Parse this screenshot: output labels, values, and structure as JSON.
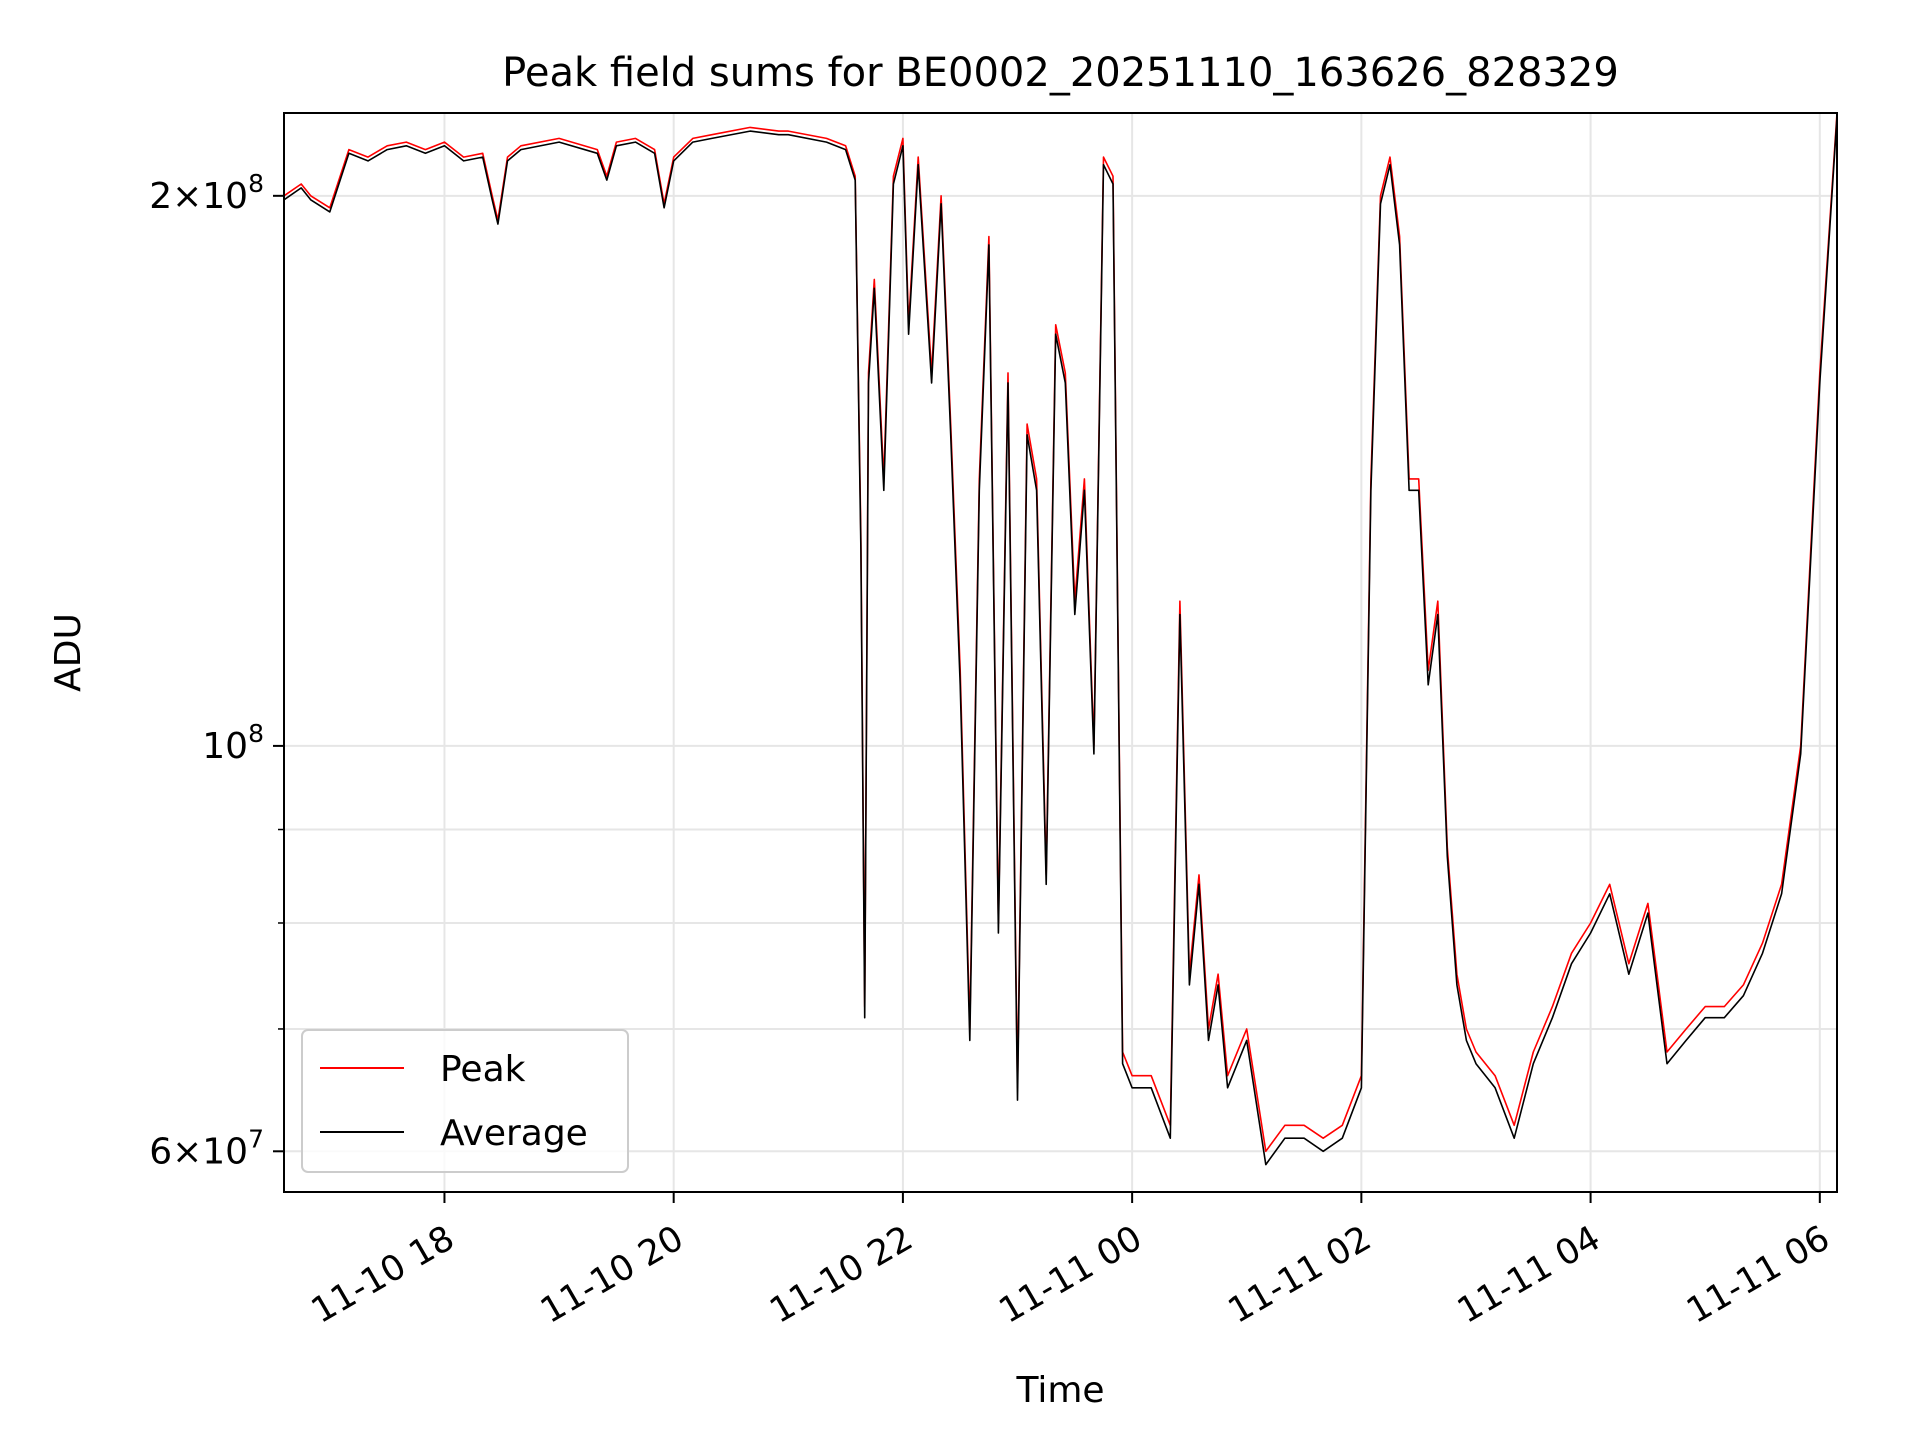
{
  "colors": {
    "peak": "#ff0000",
    "average": "#000000",
    "grid": "#e6e6e6",
    "frame": "#000000"
  },
  "chart_data": {
    "type": "line",
    "title": "Peak field sums for BE0002_20251110_163626_828329",
    "xlabel": "Time",
    "ylabel": "ADU",
    "yscale": "log",
    "grid": true,
    "legend_position": "lower-left",
    "xlim": [
      "2025-11-10 16:36",
      "2025-11-11 06:09"
    ],
    "ylim": [
      57000000,
      222000000
    ],
    "x_ticks": [
      "2025-11-10 18:00",
      "2025-11-10 20:00",
      "2025-11-10 22:00",
      "2025-11-11 00:00",
      "2025-11-11 02:00",
      "2025-11-11 04:00",
      "2025-11-11 06:00"
    ],
    "x_tick_labels": [
      "11-10 18",
      "11-10 20",
      "11-10 22",
      "11-11 00",
      "11-11 02",
      "11-11 04",
      "11-11 06"
    ],
    "y_ticks": [
      {
        "value": 60000000,
        "mantissa": "6",
        "exponent": "7"
      },
      {
        "value": 100000000,
        "mantissa": "",
        "exponent": "8"
      },
      {
        "value": 200000000,
        "mantissa": "2",
        "exponent": "8"
      }
    ],
    "y_minor_ticks": [
      70000000,
      80000000,
      90000000
    ],
    "series": [
      {
        "name": "Peak",
        "color": "#ff0000",
        "x": [
          "2025-11-10 16:36",
          "2025-11-10 16:45",
          "2025-11-10 16:50",
          "2025-11-10 17:00",
          "2025-11-10 17:10",
          "2025-11-10 17:20",
          "2025-11-10 17:30",
          "2025-11-10 17:40",
          "2025-11-10 17:50",
          "2025-11-10 18:00",
          "2025-11-10 18:10",
          "2025-11-10 18:20",
          "2025-11-10 18:25",
          "2025-11-10 18:28",
          "2025-11-10 18:33",
          "2025-11-10 18:40",
          "2025-11-10 19:00",
          "2025-11-10 19:20",
          "2025-11-10 19:25",
          "2025-11-10 19:30",
          "2025-11-10 19:40",
          "2025-11-10 19:50",
          "2025-11-10 19:55",
          "2025-11-10 20:00",
          "2025-11-10 20:10",
          "2025-11-10 20:20",
          "2025-11-10 20:40",
          "2025-11-10 20:55",
          "2025-11-10 21:00",
          "2025-11-10 21:20",
          "2025-11-10 21:30",
          "2025-11-10 21:35",
          "2025-11-10 21:38",
          "2025-11-10 21:40",
          "2025-11-10 21:42",
          "2025-11-10 21:45",
          "2025-11-10 21:50",
          "2025-11-10 21:55",
          "2025-11-10 22:00",
          "2025-11-10 22:03",
          "2025-11-10 22:08",
          "2025-11-10 22:12",
          "2025-11-10 22:15",
          "2025-11-10 22:20",
          "2025-11-10 22:25",
          "2025-11-10 22:30",
          "2025-11-10 22:35",
          "2025-11-10 22:40",
          "2025-11-10 22:45",
          "2025-11-10 22:50",
          "2025-11-10 22:55",
          "2025-11-10 23:00",
          "2025-11-10 23:05",
          "2025-11-10 23:10",
          "2025-11-10 23:15",
          "2025-11-10 23:20",
          "2025-11-10 23:25",
          "2025-11-10 23:30",
          "2025-11-10 23:35",
          "2025-11-10 23:40",
          "2025-11-10 23:45",
          "2025-11-10 23:50",
          "2025-11-10 23:55",
          "2025-11-11 00:00",
          "2025-11-11 00:10",
          "2025-11-11 00:20",
          "2025-11-11 00:25",
          "2025-11-11 00:30",
          "2025-11-11 00:35",
          "2025-11-11 00:40",
          "2025-11-11 00:45",
          "2025-11-11 00:50",
          "2025-11-11 01:00",
          "2025-11-11 01:10",
          "2025-11-11 01:20",
          "2025-11-11 01:30",
          "2025-11-11 01:40",
          "2025-11-11 01:50",
          "2025-11-11 02:00",
          "2025-11-11 02:05",
          "2025-11-11 02:10",
          "2025-11-11 02:15",
          "2025-11-11 02:20",
          "2025-11-11 02:25",
          "2025-11-11 02:30",
          "2025-11-11 02:35",
          "2025-11-11 02:40",
          "2025-11-11 02:45",
          "2025-11-11 02:50",
          "2025-11-11 02:55",
          "2025-11-11 03:00",
          "2025-11-11 03:10",
          "2025-11-11 03:20",
          "2025-11-11 03:30",
          "2025-11-11 03:40",
          "2025-11-11 03:50",
          "2025-11-11 04:00",
          "2025-11-11 04:10",
          "2025-11-11 04:20",
          "2025-11-11 04:30",
          "2025-11-11 04:40",
          "2025-11-11 04:50",
          "2025-11-11 05:00",
          "2025-11-11 05:10",
          "2025-11-11 05:20",
          "2025-11-11 05:30",
          "2025-11-11 05:40",
          "2025-11-11 05:50",
          "2025-11-11 06:00",
          "2025-11-11 06:09"
        ],
        "values": [
          200000000,
          203000000,
          200000000,
          197000000,
          212000000,
          210000000,
          213000000,
          214000000,
          212000000,
          214000000,
          210000000,
          211000000,
          200000000,
          194000000,
          210000000,
          213000000,
          215000000,
          212000000,
          205000000,
          214000000,
          215000000,
          212000000,
          198000000,
          210000000,
          215000000,
          216000000,
          218000000,
          217000000,
          217000000,
          215000000,
          213000000,
          205000000,
          130000000,
          72000000,
          160000000,
          180000000,
          140000000,
          205000000,
          215000000,
          170000000,
          210000000,
          180000000,
          160000000,
          200000000,
          150000000,
          110000000,
          70000000,
          140000000,
          190000000,
          80000000,
          160000000,
          65000000,
          150000000,
          140000000,
          85000000,
          170000000,
          160000000,
          120000000,
          140000000,
          100000000,
          210000000,
          205000000,
          68000000,
          66000000,
          66000000,
          62000000,
          120000000,
          75000000,
          85000000,
          70000000,
          75000000,
          66000000,
          70000000,
          60000000,
          62000000,
          62000000,
          61000000,
          62000000,
          66000000,
          140000000,
          200000000,
          210000000,
          190000000,
          140000000,
          140000000,
          110000000,
          120000000,
          88000000,
          75000000,
          70000000,
          68000000,
          66000000,
          62000000,
          68000000,
          72000000,
          77000000,
          80000000,
          84000000,
          76000000,
          82000000,
          68000000,
          70000000,
          72000000,
          72000000,
          74000000,
          78000000,
          84000000,
          100000000,
          160000000,
          222000000
        ]
      },
      {
        "name": "Average",
        "color": "#000000",
        "x": [
          "2025-11-10 16:36",
          "2025-11-10 16:45",
          "2025-11-10 16:50",
          "2025-11-10 17:00",
          "2025-11-10 17:10",
          "2025-11-10 17:20",
          "2025-11-10 17:30",
          "2025-11-10 17:40",
          "2025-11-10 17:50",
          "2025-11-10 18:00",
          "2025-11-10 18:10",
          "2025-11-10 18:20",
          "2025-11-10 18:25",
          "2025-11-10 18:28",
          "2025-11-10 18:33",
          "2025-11-10 18:40",
          "2025-11-10 19:00",
          "2025-11-10 19:20",
          "2025-11-10 19:25",
          "2025-11-10 19:30",
          "2025-11-10 19:40",
          "2025-11-10 19:50",
          "2025-11-10 19:55",
          "2025-11-10 20:00",
          "2025-11-10 20:10",
          "2025-11-10 20:20",
          "2025-11-10 20:40",
          "2025-11-10 20:55",
          "2025-11-10 21:00",
          "2025-11-10 21:20",
          "2025-11-10 21:30",
          "2025-11-10 21:35",
          "2025-11-10 21:38",
          "2025-11-10 21:40",
          "2025-11-10 21:42",
          "2025-11-10 21:45",
          "2025-11-10 21:50",
          "2025-11-10 21:55",
          "2025-11-10 22:00",
          "2025-11-10 22:03",
          "2025-11-10 22:08",
          "2025-11-10 22:12",
          "2025-11-10 22:15",
          "2025-11-10 22:20",
          "2025-11-10 22:25",
          "2025-11-10 22:30",
          "2025-11-10 22:35",
          "2025-11-10 22:40",
          "2025-11-10 22:45",
          "2025-11-10 22:50",
          "2025-11-10 22:55",
          "2025-11-10 23:00",
          "2025-11-10 23:05",
          "2025-11-10 23:10",
          "2025-11-10 23:15",
          "2025-11-10 23:20",
          "2025-11-10 23:25",
          "2025-11-10 23:30",
          "2025-11-10 23:35",
          "2025-11-10 23:40",
          "2025-11-10 23:45",
          "2025-11-10 23:50",
          "2025-11-10 23:55",
          "2025-11-11 00:00",
          "2025-11-11 00:10",
          "2025-11-11 00:20",
          "2025-11-11 00:25",
          "2025-11-11 00:30",
          "2025-11-11 00:35",
          "2025-11-11 00:40",
          "2025-11-11 00:45",
          "2025-11-11 00:50",
          "2025-11-11 01:00",
          "2025-11-11 01:10",
          "2025-11-11 01:20",
          "2025-11-11 01:30",
          "2025-11-11 01:40",
          "2025-11-11 01:50",
          "2025-11-11 02:00",
          "2025-11-11 02:05",
          "2025-11-11 02:10",
          "2025-11-11 02:15",
          "2025-11-11 02:20",
          "2025-11-11 02:25",
          "2025-11-11 02:30",
          "2025-11-11 02:35",
          "2025-11-11 02:40",
          "2025-11-11 02:45",
          "2025-11-11 02:50",
          "2025-11-11 02:55",
          "2025-11-11 03:00",
          "2025-11-11 03:10",
          "2025-11-11 03:20",
          "2025-11-11 03:30",
          "2025-11-11 03:40",
          "2025-11-11 03:50",
          "2025-11-11 04:00",
          "2025-11-11 04:10",
          "2025-11-11 04:20",
          "2025-11-11 04:30",
          "2025-11-11 04:40",
          "2025-11-11 04:50",
          "2025-11-11 05:00",
          "2025-11-11 05:10",
          "2025-11-11 05:20",
          "2025-11-11 05:30",
          "2025-11-11 05:40",
          "2025-11-11 05:50",
          "2025-11-11 06:00",
          "2025-11-11 06:09"
        ],
        "values": [
          199000000,
          202000000,
          199000000,
          196000000,
          211000000,
          209000000,
          212000000,
          213000000,
          211000000,
          213000000,
          209000000,
          210000000,
          199000000,
          193000000,
          209000000,
          212000000,
          214000000,
          211000000,
          204000000,
          213000000,
          214000000,
          211000000,
          197000000,
          209000000,
          214000000,
          215000000,
          217000000,
          216000000,
          216000000,
          214000000,
          212000000,
          204000000,
          128000000,
          71000000,
          158000000,
          178000000,
          138000000,
          203000000,
          213000000,
          168000000,
          208000000,
          178000000,
          158000000,
          198000000,
          148000000,
          108000000,
          69000000,
          138000000,
          188000000,
          79000000,
          158000000,
          64000000,
          148000000,
          138000000,
          84000000,
          168000000,
          158000000,
          118000000,
          138000000,
          99000000,
          208000000,
          203000000,
          67000000,
          65000000,
          65000000,
          61000000,
          118000000,
          74000000,
          84000000,
          69000000,
          74000000,
          65000000,
          69000000,
          59000000,
          61000000,
          61000000,
          60000000,
          61000000,
          65000000,
          138000000,
          198000000,
          208000000,
          188000000,
          138000000,
          138000000,
          108000000,
          118000000,
          87000000,
          74000000,
          69000000,
          67000000,
          65000000,
          61000000,
          67000000,
          71000000,
          76000000,
          79000000,
          83000000,
          75000000,
          81000000,
          67000000,
          69000000,
          71000000,
          71000000,
          73000000,
          77000000,
          83000000,
          99000000,
          158000000,
          221000000
        ]
      }
    ]
  }
}
